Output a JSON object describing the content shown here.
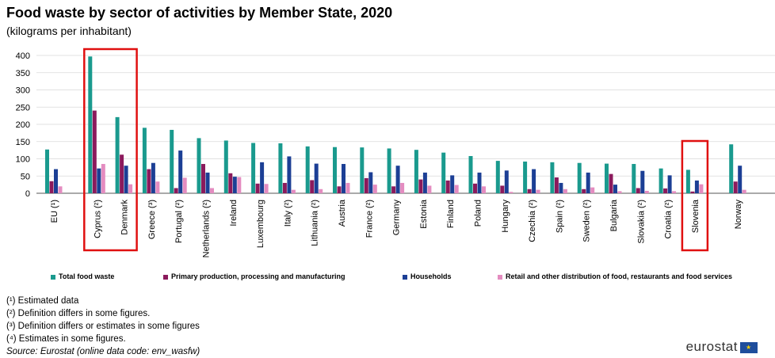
{
  "chart_data": {
    "type": "bar",
    "title": "Food waste by sector of activities by Member State, 2020",
    "subtitle": "(kilograms per inhabitant)",
    "ylim": [
      0,
      400
    ],
    "yticks": [
      0,
      50,
      100,
      150,
      200,
      250,
      300,
      350,
      400
    ],
    "grid": true,
    "categories": [
      "EU (¹)",
      "Cyprus (²)",
      "Denmark",
      "Greece (³)",
      "Portugal (²)",
      "Netherlands (²)",
      "Ireland",
      "Luxembourg",
      "Italy (²)",
      "Lithuania (²)",
      "Austria",
      "France (²)",
      "Germany",
      "Estonia",
      "Finland",
      "Poland",
      "Hungary",
      "Czechia (²)",
      "Spain (²)",
      "Sweden (²)",
      "Bulgaria",
      "Slovakia (²)",
      "Croatia (²)",
      "Slovenia",
      "Norway"
    ],
    "gap_before_index": [
      1,
      24
    ],
    "highlight_groups": [
      [
        1,
        2
      ],
      [
        23,
        23
      ]
    ],
    "series": [
      {
        "name": "Total food waste",
        "color": "#1a9a8e",
        "values": [
          127,
          397,
          221,
          190,
          184,
          160,
          153,
          146,
          145,
          136,
          134,
          133,
          130,
          126,
          118,
          108,
          94,
          92,
          90,
          88,
          86,
          85,
          72,
          68,
          142
        ]
      },
      {
        "name": "Primary production, processing and manufacturing",
        "color": "#8b1a5c",
        "values": [
          35,
          240,
          112,
          70,
          15,
          85,
          58,
          28,
          30,
          38,
          20,
          44,
          20,
          40,
          37,
          28,
          22,
          12,
          46,
          12,
          56,
          15,
          14,
          5,
          34
        ]
      },
      {
        "name": "Households",
        "color": "#1c3f95",
        "values": [
          70,
          72,
          80,
          88,
          124,
          60,
          48,
          90,
          107,
          86,
          85,
          61,
          80,
          60,
          52,
          60,
          66,
          70,
          30,
          60,
          25,
          65,
          52,
          37,
          80
        ]
      },
      {
        "name": "Retail and other distribution of food, restaurants and food services",
        "color": "#e48cc0",
        "values": [
          20,
          85,
          26,
          34,
          45,
          15,
          47,
          27,
          10,
          12,
          30,
          25,
          30,
          22,
          24,
          20,
          4,
          10,
          12,
          17,
          6,
          7,
          6,
          26,
          10
        ]
      }
    ]
  },
  "footnotes": [
    "(¹) Estimated data",
    "(²) Definition differs in some figures.",
    "(³) Definition differs or estimates in some figures",
    "(⁴) Estimates in some figures."
  ],
  "source": "Source: Eurostat (online data code: env_wasfw)",
  "logo_text": "eurostat"
}
